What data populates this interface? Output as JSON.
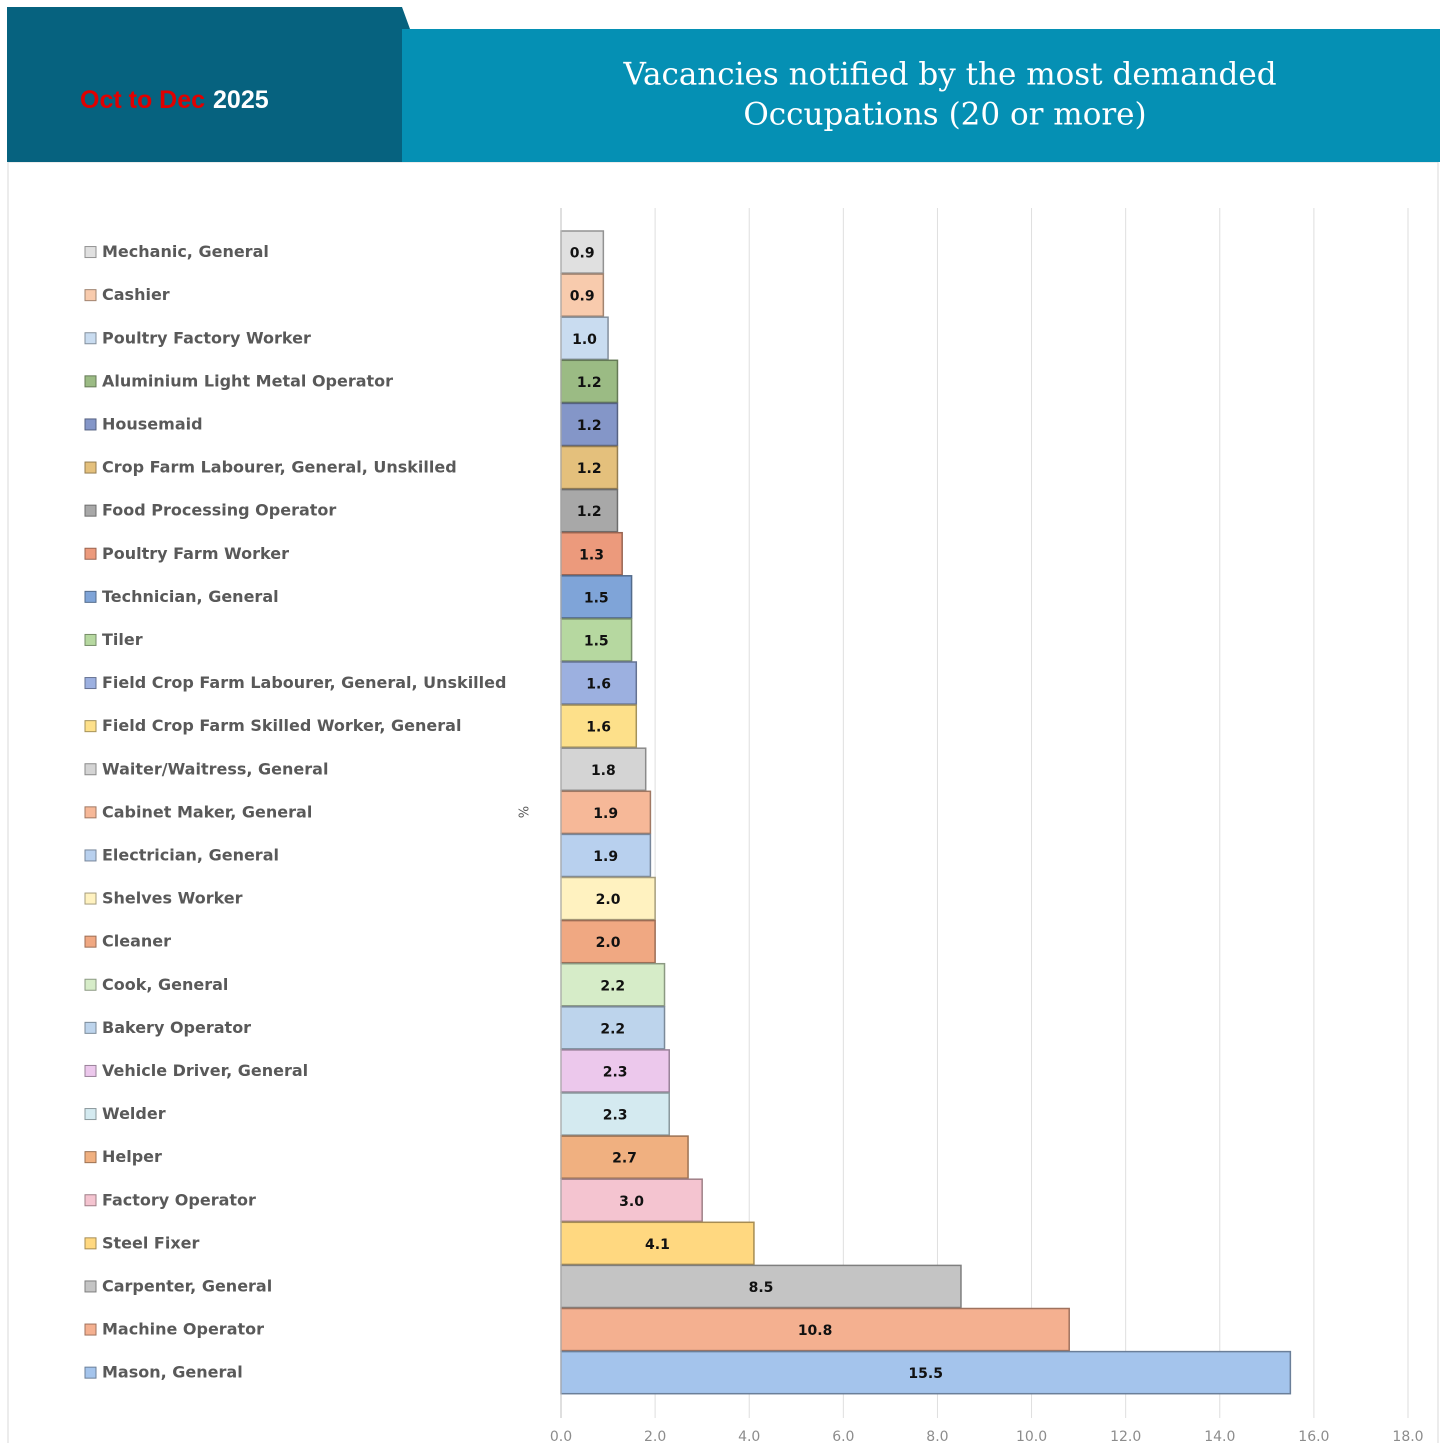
{
  "header": {
    "period": "Oct to Dec",
    "year": "2025"
  },
  "chart_data": {
    "type": "bar",
    "orientation": "horizontal",
    "title": [
      "Vacancies notified by the most demanded",
      "Occupations (20 or more)"
    ],
    "axis_label": "%",
    "categories": [
      "Mechanic, General",
      "Cashier",
      "Poultry Factory Worker",
      "Aluminium Light Metal Operator",
      "Housemaid",
      "Crop Farm Labourer, General, Unskilled",
      "Food Processing Operator",
      "Poultry Farm Worker",
      "Technician, General",
      "Tiler",
      "Field Crop Farm Labourer, General, Unskilled",
      "Field Crop Farm Skilled Worker, General",
      "Waiter/Waitress, General",
      "Cabinet Maker, General",
      "Electrician, General",
      "Shelves Worker",
      "Cleaner",
      "Cook, General",
      "Bakery Operator",
      "Vehicle Driver, General",
      "Welder",
      "Helper",
      "Factory Operator",
      "Steel Fixer",
      "Carpenter, General",
      "Machine Operator",
      "Mason, General"
    ],
    "values": [
      0.9,
      0.9,
      1.0,
      1.2,
      1.2,
      1.2,
      1.2,
      1.3,
      1.5,
      1.5,
      1.6,
      1.6,
      1.8,
      1.9,
      1.9,
      2.0,
      2.0,
      2.2,
      2.2,
      2.3,
      2.3,
      2.7,
      3.0,
      4.1,
      8.5,
      10.8,
      15.5
    ],
    "value_labels": [
      "0.9",
      "0.9",
      "1.0",
      "1.2",
      "1.2",
      "1.2",
      "1.2",
      "1.3",
      "1.5",
      "1.5",
      "1.6",
      "1.6",
      "1.8",
      "1.9",
      "1.9",
      "2.0",
      "2.0",
      "2.2",
      "2.2",
      "2.3",
      "2.3",
      "2.7",
      "3.0",
      "4.1",
      "8.5",
      "10.8",
      "15.5"
    ],
    "colors": [
      "#e0e0e0",
      "#f8cbad",
      "#c9dcf0",
      "#9bbb84",
      "#8496c8",
      "#e4c07c",
      "#a8a8a8",
      "#ec9a7c",
      "#7fa4d8",
      "#b6d8a0",
      "#9cb0e0",
      "#fde08a",
      "#d4d4d4",
      "#f6b898",
      "#b8d0ee",
      "#fff2c0",
      "#f0a882",
      "#d6ecc8",
      "#bdd4ec",
      "#ecc8ec",
      "#d4eaf0",
      "#f0b080",
      "#f4c4d0",
      "#ffd880",
      "#c4c4c4",
      "#f4b090",
      "#a4c4ec"
    ],
    "xlim": [
      0,
      18
    ],
    "xticks": [
      {
        "value": 0,
        "label": "0.0"
      },
      {
        "value": 2,
        "label": "2.0"
      },
      {
        "value": 4,
        "label": "4.0"
      },
      {
        "value": 6,
        "label": "6.0"
      },
      {
        "value": 8,
        "label": "8.0"
      },
      {
        "value": 10,
        "label": "10.0"
      },
      {
        "value": 12,
        "label": "12.0"
      },
      {
        "value": 14,
        "label": "14.0"
      },
      {
        "value": 16,
        "label": "16.0"
      },
      {
        "value": 18,
        "label": "18.0"
      }
    ],
    "grid": true
  }
}
